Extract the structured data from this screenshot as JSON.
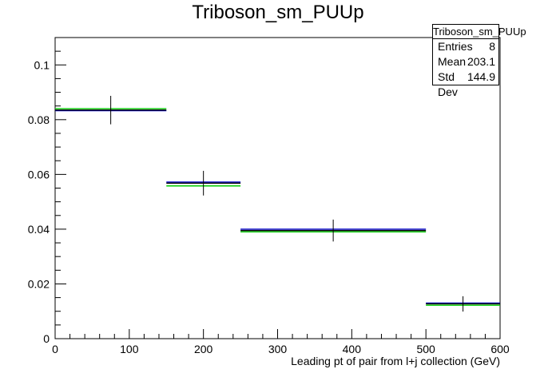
{
  "chart_data": {
    "type": "histogram",
    "title": "Triboson_sm_PUUp",
    "xlabel": "Leading pt of pair from l+j collection (GeV)",
    "ylabel": "",
    "xlim": [
      0,
      600
    ],
    "ylim": [
      0,
      0.11
    ],
    "x_ticks": [
      "0",
      "100",
      "200",
      "300",
      "400",
      "500",
      "600"
    ],
    "y_ticks": [
      "0",
      "0.02",
      "0.04",
      "0.06",
      "0.08",
      "0.1"
    ],
    "bins": [
      {
        "low": 0,
        "high": 150,
        "center": 75,
        "value": 0.0835,
        "error": 0.0052
      },
      {
        "low": 150,
        "high": 250,
        "center": 200,
        "value": 0.0568,
        "error": 0.0045
      },
      {
        "low": 250,
        "high": 500,
        "center": 375,
        "value": 0.0395,
        "error": 0.004
      },
      {
        "low": 500,
        "high": 600,
        "center": 550,
        "value": 0.0127,
        "error": 0.0028
      }
    ],
    "series": [
      {
        "color": "#0000cc",
        "values": [
          0.0833,
          0.0572,
          0.04,
          0.013
        ]
      },
      {
        "color": "#000000",
        "values": [
          0.0835,
          0.0568,
          0.0395,
          0.0127
        ]
      },
      {
        "color": "#00cc00",
        "values": [
          0.084,
          0.0558,
          0.039,
          0.0122
        ]
      }
    ],
    "stats": {
      "name": "Triboson_sm_PUUp",
      "rows": [
        {
          "label": "Entries",
          "value": "8"
        },
        {
          "label": "Mean",
          "value": "203.1"
        },
        {
          "label": "Std Dev",
          "value": "144.9"
        }
      ]
    },
    "grid": false,
    "legend": "top-right"
  }
}
